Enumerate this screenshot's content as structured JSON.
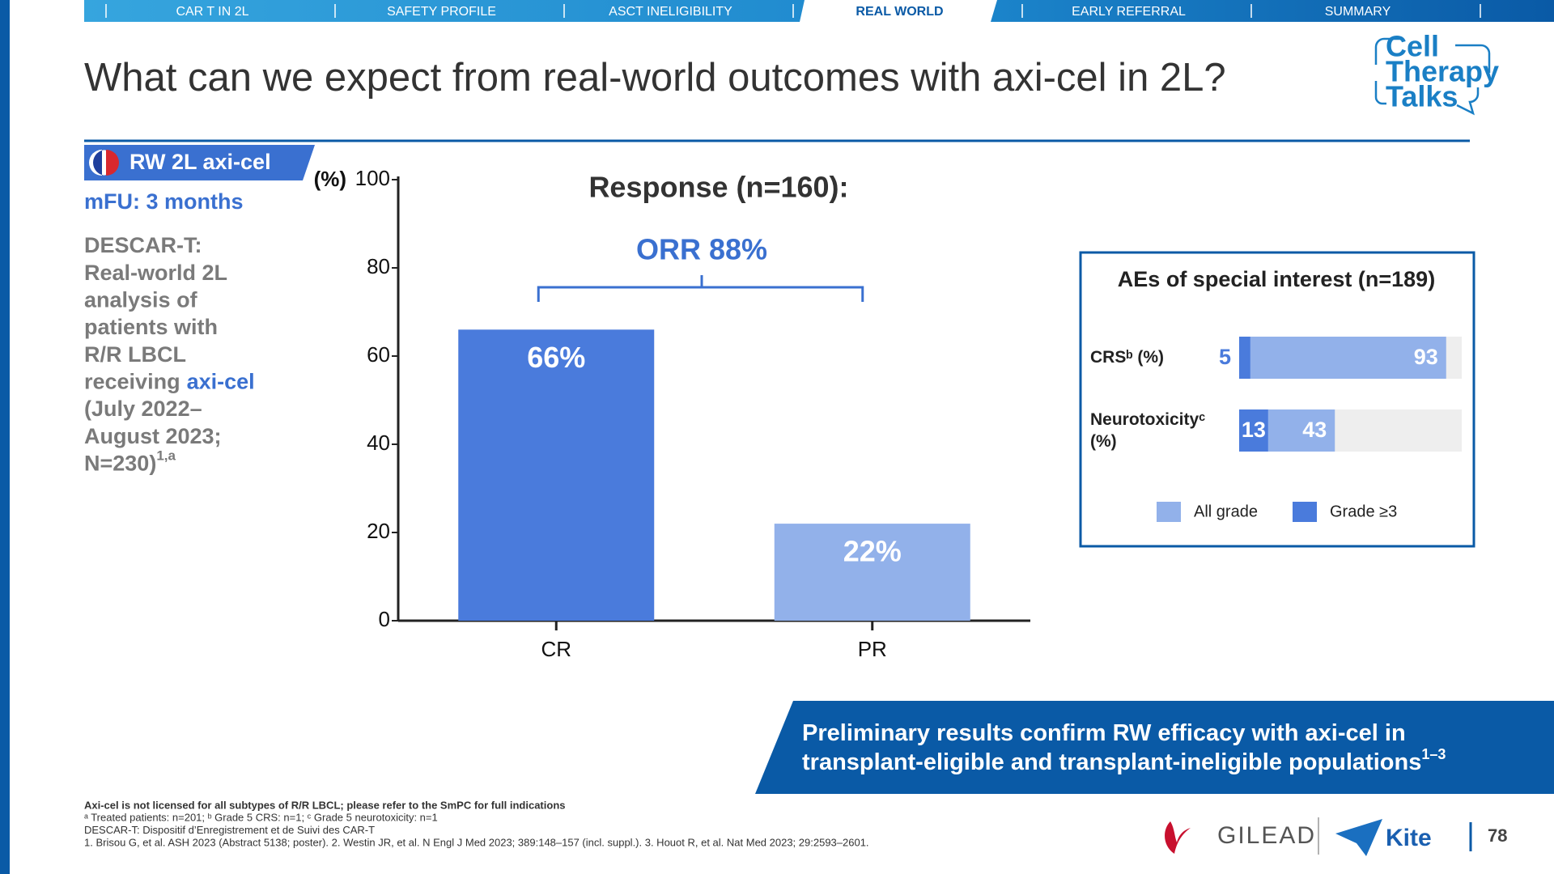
{
  "nav": {
    "tabs": [
      "CAR T IN 2L",
      "SAFETY PROFILE",
      "ASCT INELIGIBILITY",
      "REAL WORLD",
      "EARLY REFERRAL",
      "SUMMARY"
    ],
    "active": 3
  },
  "header": {
    "title": "What can we expect from real-world outcomes with axi-cel in 2L?"
  },
  "logo": {
    "lines": [
      "Cell",
      "Therapy",
      "Talks"
    ]
  },
  "sidebar": {
    "tag": "RW 2L axi-cel",
    "followup": "mFU: 3 months",
    "lines_before": [
      "DESCAR-T:",
      "Real-world 2L",
      "analysis of",
      "patients with",
      "R/R LBCL"
    ],
    "receiving": "receiving",
    "drug": "axi-cel",
    "lines_after": [
      "(July 2022–",
      "August 2023;",
      "N=230)"
    ],
    "superscript": "1,a"
  },
  "chart_data": [
    {
      "type": "bar",
      "title": "Response (n=160):",
      "unit_label": "(%)",
      "annotation": "ORR 88%",
      "categories": [
        "CR",
        "PR"
      ],
      "values": [
        66,
        22
      ],
      "value_labels": [
        "66%",
        "22%"
      ],
      "colors": [
        "#4a7bdc",
        "#92b1ea"
      ],
      "ylim": [
        0,
        100
      ],
      "yticks": [
        0,
        20,
        40,
        60,
        80,
        100
      ]
    },
    {
      "type": "overlap-hbar",
      "title": "AEs of special interest (n=189)",
      "categories": [
        "CRSᵇ (%)",
        "Neurotoxicityᶜ (%)"
      ],
      "series": [
        {
          "name": "All grade",
          "color": "#92b1ea",
          "values": [
            93,
            43
          ]
        },
        {
          "name": "Grade ≥3",
          "color": "#4a7bdc",
          "values": [
            5,
            13
          ]
        }
      ],
      "xlim": [
        0,
        100
      ]
    }
  ],
  "banner": {
    "lines": [
      "Preliminary results confirm RW efficacy with axi-cel in",
      "transplant-eligible and transplant-ineligible populations"
    ],
    "superscript": "1–3"
  },
  "footnotes": [
    "Axi-cel is not licensed for all subtypes of R/R LBCL; please refer to the SmPC for full indications",
    "ᵃ Treated patients: n=201; ᵇ Grade 5 CRS: n=1; ᶜ Grade 5 neurotoxicity: n=1",
    "DESCAR-T: Dispositif d’Enregistrement et de Suivi des CAR-T",
    "1. Brisou G, et al. ASH 2023 (Abstract 5138; poster). 2. Westin JR, et al. N Engl J Med 2023; 389:148–157 (incl. suppl.). 3. Houot R, et al. Nat Med 2023; 29:2593–2601."
  ],
  "brand": {
    "gilead": "GILEAD",
    "kite": "Kite",
    "page": "78"
  }
}
